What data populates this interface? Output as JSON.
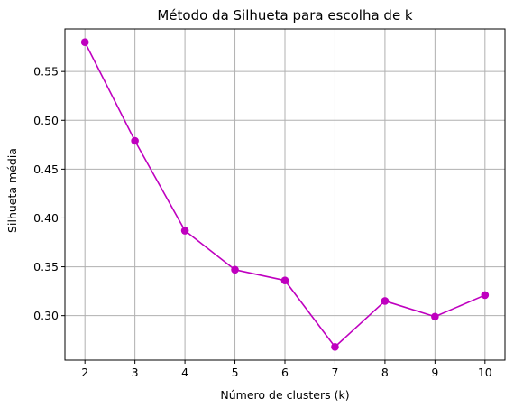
{
  "chart_data": {
    "type": "line",
    "title": "Método da Silhueta para escolha de k",
    "xlabel": "Número de clusters (k)",
    "ylabel": "Silhueta média",
    "x": [
      2,
      3,
      4,
      5,
      6,
      7,
      8,
      9,
      10
    ],
    "series": [
      {
        "values": [
          0.58,
          0.479,
          0.387,
          0.347,
          0.336,
          0.268,
          0.315,
          0.299,
          0.321
        ],
        "color": "#bf00bf",
        "marker": "circle"
      }
    ],
    "xlim": [
      1.6,
      10.4
    ],
    "ylim": [
      0.2544,
      0.5936
    ],
    "xticks": [
      "2",
      "3",
      "4",
      "5",
      "6",
      "7",
      "8",
      "9",
      "10"
    ],
    "yticks": [
      "0.30",
      "0.35",
      "0.40",
      "0.45",
      "0.50",
      "0.55"
    ],
    "grid": true,
    "grid_color": "#b0b0b0"
  }
}
